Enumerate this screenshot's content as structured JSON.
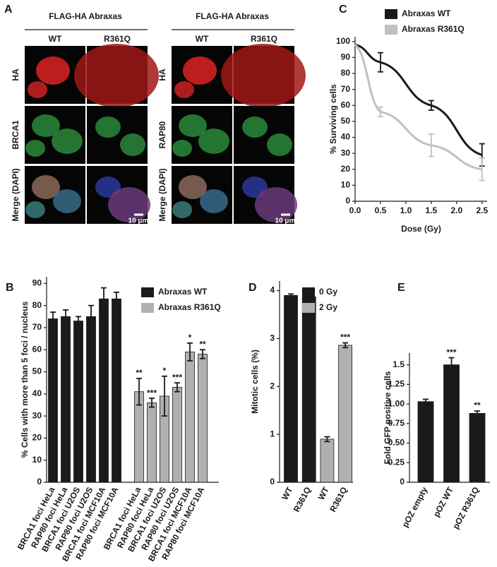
{
  "panel_a": {
    "label": "A",
    "groups": [
      {
        "title": "FLAG-HA Abraxas",
        "columns": [
          "WT",
          "R361Q"
        ],
        "rows": [
          "HA",
          "BRCA1",
          "Merge (DAPI)"
        ],
        "scale_bar": "10 μm"
      },
      {
        "title": "FLAG-HA Abraxas",
        "columns": [
          "WT",
          "R361Q"
        ],
        "rows": [
          "HA",
          "RAP80",
          "Merge (DAPI)"
        ],
        "scale_bar": "10 μm"
      }
    ]
  },
  "chart_data": [
    {
      "type": "line",
      "panel_label": "C",
      "xlabel": "Dose (Gy)",
      "ylabel": "% Surviving cells",
      "x": [
        0,
        0.5,
        1.5,
        2.5
      ],
      "xlim": [
        0,
        2.6
      ],
      "xticks": [
        {
          "value": 0,
          "label": "0.0"
        },
        0.5,
        {
          "value": 1,
          "label": "1.0"
        },
        1.5,
        {
          "value": 2,
          "label": "2.0"
        },
        2.5
      ],
      "ylim": [
        0,
        103
      ],
      "yticks": [
        0,
        10,
        20,
        30,
        40,
        50,
        60,
        70,
        80,
        90,
        100
      ],
      "legend": "top",
      "series": [
        {
          "name": "Abraxas WT",
          "color": "#1a1a1a",
          "values": [
            98,
            87,
            60,
            29
          ],
          "errors": [
            null,
            6,
            3,
            7
          ]
        },
        {
          "name": "Abraxas R361Q",
          "color": "#c0c0c0",
          "values": [
            98,
            56,
            35,
            20
          ],
          "errors": [
            null,
            3,
            7,
            7
          ]
        }
      ]
    },
    {
      "type": "bar",
      "panel_label": "B",
      "ylabel": "% Cells with more than 5 foci / nucleus",
      "categories": [
        "BRCA1 foci HeLa",
        "RAP80 foci HeLa",
        "BRCA1 foci U2OS",
        "RAP80 foci U2OS",
        "BRCA1 foci MCF10A",
        "RAP80 foci MCF10A",
        "BRCA1 foci HeLa",
        "RAP80 foci HeLa",
        "BRCA1 foci U2OS",
        "RAP80 foci U2OS",
        "BRCA1 foci MCF10A",
        "RAP80 foci MCF10A"
      ],
      "ylim": [
        0,
        93
      ],
      "yticks": [
        0,
        10,
        20,
        30,
        40,
        50,
        60,
        70,
        80,
        90
      ],
      "legend": "top",
      "series": [
        {
          "name": "Abraxas WT",
          "color": "#1a1a1a",
          "values": [
            74,
            75,
            73,
            75,
            83,
            83,
            null,
            null,
            null,
            null,
            null,
            null
          ],
          "errors": [
            3,
            3,
            2,
            5,
            5,
            3,
            null,
            null,
            null,
            null,
            null,
            null
          ]
        },
        {
          "name": "Abraxas R361Q",
          "color": "#b0b0b0",
          "values": [
            null,
            null,
            null,
            null,
            null,
            null,
            41,
            36,
            39,
            43,
            59,
            58
          ],
          "errors": [
            null,
            null,
            null,
            null,
            null,
            null,
            6,
            2,
            9,
            2,
            4,
            2
          ],
          "significance": [
            null,
            null,
            null,
            null,
            null,
            null,
            "**",
            "***",
            "*",
            "***",
            "*",
            "**"
          ]
        }
      ]
    },
    {
      "type": "bar",
      "panel_label": "D",
      "ylabel": "Mitotic cells (%)",
      "categories": [
        "WT",
        "R361Q",
        "WT",
        "R361Q"
      ],
      "ylim": [
        0,
        4.2
      ],
      "yticks": [
        0,
        1,
        2,
        3,
        4
      ],
      "legend": "top",
      "series": [
        {
          "name": "0 Gy",
          "color": "#1a1a1a",
          "values": [
            3.9,
            3.87,
            null,
            null
          ],
          "errors": [
            0.03,
            0.15,
            null,
            null
          ]
        },
        {
          "name": "2 Gy",
          "color": "#b0b0b0",
          "values": [
            null,
            null,
            0.9,
            2.86
          ],
          "errors": [
            null,
            null,
            0.05,
            0.05
          ],
          "significance": [
            null,
            null,
            null,
            "***"
          ]
        }
      ]
    },
    {
      "type": "bar",
      "panel_label": "E",
      "ylabel": "Fold GFP positive cells",
      "categories": [
        "pOZ empty",
        "pOZ WT",
        "pOZ R361Q"
      ],
      "ylim": [
        0,
        1.65
      ],
      "yticks": [
        0,
        0.25,
        {
          "value": 0.5,
          "label": "0.50"
        },
        0.75,
        {
          "value": 1,
          "label": "1.00"
        },
        1.25,
        1.5
      ],
      "color": "#1a1a1a",
      "values": [
        1.03,
        1.5,
        0.88
      ],
      "errors": [
        0.03,
        0.09,
        0.03
      ],
      "significance": [
        null,
        "***",
        "**"
      ]
    }
  ]
}
